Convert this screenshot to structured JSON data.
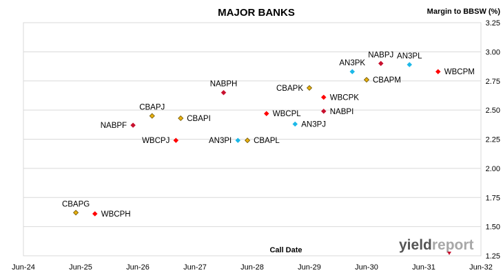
{
  "chart_data": {
    "type": "scatter",
    "title": "MAJOR BANKS",
    "ylabel": "Margin to BBSW (%)",
    "xlabel": "Call Date",
    "ylim": [
      1.25,
      3.25
    ],
    "yticks": [
      "1.25",
      "1.50",
      "1.75",
      "2.00",
      "2.25",
      "2.50",
      "2.75",
      "3.00",
      "3.25"
    ],
    "xlim": [
      "2024-06",
      "2032-06"
    ],
    "xticks": [
      "Jun-24",
      "Jun-25",
      "Jun-26",
      "Jun-27",
      "Jun-28",
      "Jun-29",
      "Jun-30",
      "Jun-31",
      "Jun-32"
    ],
    "grid": "horizontal",
    "colors": {
      "ANZ": "#1cb8e8",
      "CBA": "#e8b010",
      "NAB": "#c8102e",
      "WBC": "#ff0000"
    },
    "points": [
      {
        "name": "CBAPG",
        "x": "2025-05",
        "y": 1.62,
        "issuer": "CBA",
        "label_pos": "above"
      },
      {
        "name": "WBCPH",
        "x": "2025-09",
        "y": 1.61,
        "issuer": "WBC",
        "label_pos": "right"
      },
      {
        "name": "NABPF",
        "x": "2026-05",
        "y": 2.37,
        "issuer": "NAB",
        "label_pos": "left"
      },
      {
        "name": "CBAPJ",
        "x": "2026-09",
        "y": 2.45,
        "issuer": "CBA",
        "label_pos": "above"
      },
      {
        "name": "WBCPJ",
        "x": "2027-02",
        "y": 2.24,
        "issuer": "WBC",
        "label_pos": "left"
      },
      {
        "name": "CBAPI",
        "x": "2027-03",
        "y": 2.43,
        "issuer": "CBA",
        "label_pos": "right"
      },
      {
        "name": "NABPH",
        "x": "2027-12",
        "y": 2.65,
        "issuer": "NAB",
        "label_pos": "above"
      },
      {
        "name": "AN3PI",
        "x": "2028-03",
        "y": 2.24,
        "issuer": "ANZ",
        "label_pos": "left"
      },
      {
        "name": "CBAPL",
        "x": "2028-05",
        "y": 2.24,
        "issuer": "CBA",
        "label_pos": "right"
      },
      {
        "name": "WBCPL",
        "x": "2028-09",
        "y": 2.47,
        "issuer": "WBC",
        "label_pos": "right"
      },
      {
        "name": "AN3PJ",
        "x": "2029-03",
        "y": 2.38,
        "issuer": "ANZ",
        "label_pos": "right"
      },
      {
        "name": "CBAPK",
        "x": "2029-06",
        "y": 2.69,
        "issuer": "CBA",
        "label_pos": "left"
      },
      {
        "name": "NABPI",
        "x": "2029-09",
        "y": 2.49,
        "issuer": "NAB",
        "label_pos": "right"
      },
      {
        "name": "WBCPK",
        "x": "2029-09",
        "y": 2.61,
        "issuer": "WBC",
        "label_pos": "right"
      },
      {
        "name": "AN3PK",
        "x": "2030-03",
        "y": 2.83,
        "issuer": "ANZ",
        "label_pos": "above"
      },
      {
        "name": "CBAPM",
        "x": "2030-06",
        "y": 2.76,
        "issuer": "CBA",
        "label_pos": "right"
      },
      {
        "name": "NABPJ",
        "x": "2030-09",
        "y": 2.9,
        "issuer": "NAB",
        "label_pos": "above"
      },
      {
        "name": "AN3PL",
        "x": "2031-03",
        "y": 2.89,
        "issuer": "ANZ",
        "label_pos": "above"
      },
      {
        "name": "WBCPM",
        "x": "2031-09",
        "y": 2.83,
        "issuer": "WBC",
        "label_pos": "right"
      }
    ]
  },
  "logo": {
    "part1": "yield",
    "part2": "report",
    "accent": "#c8102e"
  }
}
